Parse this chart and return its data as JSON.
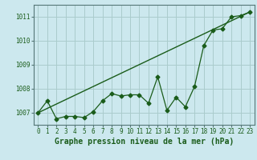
{
  "xlabel": "Graphe pression niveau de la mer (hPa)",
  "background_color": "#cce8ee",
  "grid_color": "#aacccc",
  "line_color": "#1a5c1a",
  "x_values": [
    0,
    1,
    2,
    3,
    4,
    5,
    6,
    7,
    8,
    9,
    10,
    11,
    12,
    13,
    14,
    15,
    16,
    17,
    18,
    19,
    20,
    21,
    22,
    23
  ],
  "y_values": [
    1007.0,
    1007.5,
    1006.75,
    1006.85,
    1006.85,
    1006.8,
    1007.05,
    1007.5,
    1007.8,
    1007.7,
    1007.75,
    1007.75,
    1007.4,
    1008.5,
    1007.1,
    1007.65,
    1007.25,
    1008.1,
    1009.8,
    1010.45,
    1010.5,
    1011.0,
    1011.05,
    1011.2
  ],
  "trend_x": [
    0,
    23
  ],
  "trend_y": [
    1007.0,
    1011.2
  ],
  "ylim": [
    1006.5,
    1011.5
  ],
  "yticks": [
    1007,
    1008,
    1009,
    1010,
    1011
  ],
  "xlim": [
    -0.5,
    23.5
  ],
  "xticks": [
    0,
    1,
    2,
    3,
    4,
    5,
    6,
    7,
    8,
    9,
    10,
    11,
    12,
    13,
    14,
    15,
    16,
    17,
    18,
    19,
    20,
    21,
    22,
    23
  ],
  "tick_fontsize": 5.5,
  "xlabel_fontsize": 7.0
}
